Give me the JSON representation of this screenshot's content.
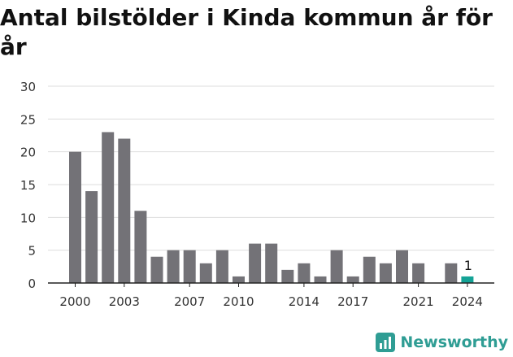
{
  "chart_data": {
    "type": "bar",
    "title": "Antal bilstölder i Kinda kommun år för år",
    "xlabel": "",
    "ylabel": "",
    "categories": [
      2000,
      2001,
      2002,
      2003,
      2004,
      2005,
      2006,
      2007,
      2008,
      2009,
      2010,
      2011,
      2012,
      2013,
      2014,
      2015,
      2016,
      2017,
      2018,
      2019,
      2020,
      2021,
      2022,
      2023,
      2024
    ],
    "values": [
      20,
      14,
      23,
      22,
      11,
      4,
      5,
      5,
      3,
      5,
      1,
      6,
      6,
      2,
      3,
      1,
      5,
      1,
      4,
      3,
      5,
      3,
      0,
      3,
      1
    ],
    "x_tick_labels": [
      "2000",
      "2003",
      "2007",
      "2010",
      "2014",
      "2017",
      "2021",
      "2024"
    ],
    "y_ticks": [
      0,
      5,
      10,
      15,
      20,
      25,
      30
    ],
    "ylim": [
      0,
      30
    ],
    "grid": true,
    "highlight": {
      "category": 2024,
      "label": "1"
    },
    "colors": {
      "bar": "#737277",
      "highlight": "#14a396",
      "grid": "#dddddd",
      "axis": "#222222",
      "text": "#333333"
    }
  },
  "brand": {
    "name": "Newsworthy",
    "color": "#2f9d94",
    "icon": "newsworthy-chart-logo-icon"
  }
}
